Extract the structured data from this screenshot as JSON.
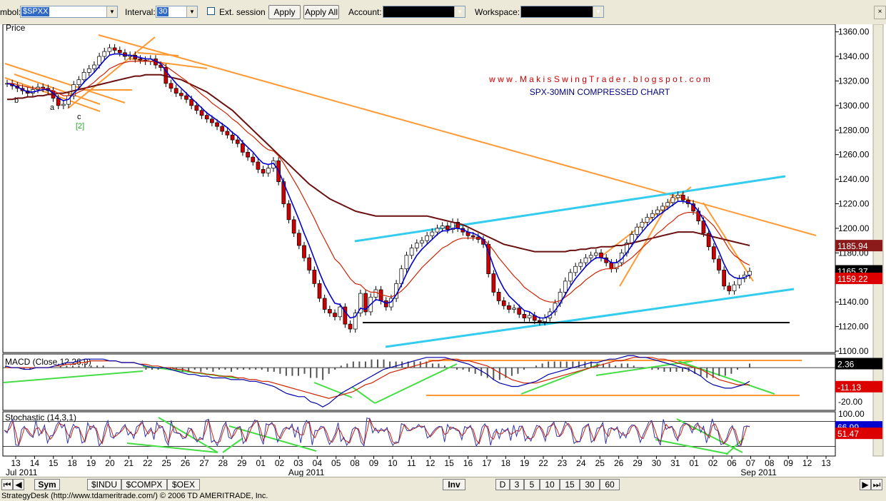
{
  "toolbar": {
    "symbol_label": "mbol:",
    "symbol_value": "$SPXX",
    "interval_label": "Interval:",
    "interval_value": "30",
    "ext_session_label": "Ext. session",
    "apply_label": "Apply",
    "apply_all_label": "Apply All",
    "account_label": "Account:",
    "workspace_label": "Workspace:"
  },
  "watermark": {
    "blog": "w w w . M a k i s S w i n g T r a d e r . b l o g s p o t . c o m",
    "subtitle": "SPX-30MIN COMPRESSED CHART"
  },
  "colors": {
    "up_candle": "#ffffff",
    "down_candle": "#cc0000",
    "ema_fast": "#0000cc",
    "ema_slow": "#cc2200",
    "sma_long": "#6b1010",
    "trendline": "#ff9933",
    "channel": "#33ccee",
    "divergence": "#44dd44",
    "support": "#000000"
  },
  "tabs": {
    "left": [
      "Sym",
      "$INDU",
      "$COMPX",
      "$OEX"
    ],
    "right": [
      "Inv",
      "D",
      "3",
      "5",
      "10",
      "15",
      "30",
      "60"
    ]
  },
  "status_text": "StrategyDesk (http://www.tdameritrade.com/) © 2006 TD AMERITRADE, Inc.",
  "chart_data": [
    {
      "panel": "price",
      "type": "candlestick",
      "title": "Price",
      "ylim": [
        1100,
        1365
      ],
      "yticks": [
        "1100.00",
        "1120.00",
        "1140.00",
        "1160.00",
        "1180.00",
        "1200.00",
        "1220.00",
        "1240.00",
        "1260.00",
        "1280.00",
        "1300.00",
        "1320.00",
        "1340.00",
        "1360.00"
      ],
      "price_labels": [
        {
          "text": "1185.94",
          "value": 1185.94,
          "color": "#8b1a1a"
        },
        {
          "text": "1165.37",
          "value": 1165.37,
          "color": "#000000"
        },
        {
          "text": "1159.22",
          "value": 1159.22,
          "color": "#dd0000"
        }
      ],
      "wave_labels": [
        "b",
        "a",
        "c",
        "[2]"
      ],
      "x_ticks": [
        "13",
        "14",
        "15",
        "18",
        "19",
        "20",
        "21",
        "22",
        "25",
        "26",
        "27",
        "28",
        "29",
        "01",
        "02",
        "03",
        "04",
        "05",
        "08",
        "09",
        "10",
        "11",
        "12",
        "15",
        "16",
        "17",
        "18",
        "19",
        "22",
        "23",
        "24",
        "25",
        "26",
        "29",
        "30",
        "31",
        "01",
        "02",
        "06",
        "07",
        "08",
        "09",
        "12",
        "13"
      ],
      "month_labels": [
        {
          "text": "Jul 2011",
          "at": "13"
        },
        {
          "text": "Aug 2011",
          "at": "02"
        },
        {
          "text": "Sep 2011",
          "at": "02"
        }
      ],
      "closes": [
        1318,
        1316,
        1314,
        1312,
        1310,
        1313,
        1315,
        1314,
        1312,
        1306,
        1300,
        1301,
        1308,
        1317,
        1321,
        1327,
        1330,
        1333,
        1340,
        1344,
        1347,
        1345,
        1343,
        1340,
        1341,
        1338,
        1337,
        1336,
        1338,
        1333,
        1331,
        1318,
        1314,
        1310,
        1308,
        1305,
        1300,
        1296,
        1292,
        1289,
        1286,
        1283,
        1279,
        1276,
        1272,
        1269,
        1262,
        1258,
        1254,
        1248,
        1245,
        1249,
        1255,
        1238,
        1220,
        1207,
        1196,
        1186,
        1176,
        1166,
        1155,
        1143,
        1134,
        1131,
        1128,
        1136,
        1122,
        1118,
        1131,
        1147,
        1132,
        1144,
        1150,
        1141,
        1136,
        1143,
        1155,
        1167,
        1178,
        1184,
        1188,
        1190,
        1194,
        1197,
        1200,
        1202,
        1199,
        1205,
        1200,
        1197,
        1194,
        1193,
        1191,
        1187,
        1163,
        1148,
        1141,
        1137,
        1134,
        1135,
        1130,
        1127,
        1129,
        1125,
        1124,
        1127,
        1132,
        1139,
        1148,
        1157,
        1164,
        1169,
        1172,
        1176,
        1178,
        1180,
        1176,
        1172,
        1167,
        1172,
        1180,
        1188,
        1195,
        1201,
        1205,
        1209,
        1212,
        1215,
        1218,
        1221,
        1225,
        1227,
        1223,
        1220,
        1214,
        1206,
        1196,
        1185,
        1175,
        1166,
        1153,
        1149,
        1154,
        1159,
        1162,
        1165
      ],
      "ema_fast_values": [
        1318,
        1317,
        1315,
        1313,
        1311,
        1311,
        1312,
        1313,
        1313,
        1310,
        1306,
        1304,
        1305,
        1310,
        1314,
        1319,
        1323,
        1327,
        1332,
        1337,
        1341,
        1342,
        1342,
        1341,
        1341,
        1340,
        1339,
        1338,
        1338,
        1336,
        1334,
        1328,
        1323,
        1318,
        1314,
        1310,
        1306,
        1302,
        1298,
        1294,
        1291,
        1288,
        1285,
        1282,
        1278,
        1275,
        1270,
        1266,
        1262,
        1257,
        1253,
        1252,
        1253,
        1247,
        1237,
        1227,
        1217,
        1207,
        1196,
        1186,
        1175,
        1164,
        1154,
        1146,
        1139,
        1138,
        1132,
        1127,
        1128,
        1135,
        1134,
        1138,
        1142,
        1141,
        1139,
        1140,
        1146,
        1154,
        1163,
        1171,
        1178,
        1183,
        1187,
        1191,
        1195,
        1198,
        1198,
        1200,
        1200,
        1199,
        1197,
        1196,
        1194,
        1191,
        1181,
        1169,
        1159,
        1151,
        1145,
        1141,
        1137,
        1133,
        1132,
        1129,
        1127,
        1127,
        1129,
        1133,
        1139,
        1146,
        1153,
        1159,
        1164,
        1169,
        1173,
        1176,
        1176,
        1175,
        1172,
        1172,
        1175,
        1180,
        1186,
        1192,
        1197,
        1202,
        1206,
        1210,
        1213,
        1216,
        1219,
        1222,
        1222,
        1221,
        1219,
        1214,
        1207,
        1199,
        1190,
        1181,
        1171,
        1163,
        1160,
        1159,
        1160,
        1162
      ],
      "ema_slow_values": [
        1318,
        1318,
        1317,
        1316,
        1315,
        1314,
        1314,
        1314,
        1313,
        1312,
        1310,
        1308,
        1308,
        1309,
        1311,
        1313,
        1316,
        1319,
        1323,
        1326,
        1330,
        1332,
        1334,
        1335,
        1336,
        1336,
        1336,
        1336,
        1336,
        1336,
        1335,
        1332,
        1329,
        1326,
        1323,
        1320,
        1316,
        1313,
        1309,
        1306,
        1302,
        1299,
        1296,
        1293,
        1289,
        1286,
        1282,
        1278,
        1275,
        1271,
        1267,
        1264,
        1263,
        1259,
        1253,
        1246,
        1239,
        1232,
        1224,
        1216,
        1208,
        1199,
        1191,
        1183,
        1175,
        1171,
        1165,
        1159,
        1155,
        1154,
        1150,
        1148,
        1148,
        1146,
        1145,
        1144,
        1146,
        1149,
        1153,
        1158,
        1163,
        1168,
        1172,
        1176,
        1180,
        1184,
        1186,
        1189,
        1191,
        1192,
        1192,
        1192,
        1192,
        1191,
        1187,
        1182,
        1176,
        1171,
        1166,
        1161,
        1157,
        1152,
        1149,
        1146,
        1143,
        1141,
        1140,
        1140,
        1141,
        1144,
        1147,
        1151,
        1154,
        1158,
        1161,
        1164,
        1166,
        1167,
        1167,
        1168,
        1170,
        1173,
        1176,
        1180,
        1184,
        1188,
        1192,
        1196,
        1199,
        1203,
        1206,
        1210,
        1212,
        1213,
        1213,
        1212,
        1210,
        1206,
        1202,
        1196,
        1190,
        1183,
        1178,
        1175,
        1172,
        1170
      ],
      "sma_long_values": [
        1305,
        1305,
        1306,
        1306,
        1307,
        1307,
        1308,
        1308,
        1309,
        1309,
        1310,
        1310,
        1311,
        1312,
        1313,
        1314,
        1315,
        1316,
        1317,
        1318,
        1319,
        1320,
        1321,
        1322,
        1323,
        1324,
        1324,
        1325,
        1325,
        1325,
        1325,
        1324,
        1323,
        1322,
        1321,
        1319,
        1317,
        1315,
        1313,
        1311,
        1308,
        1305,
        1302,
        1299,
        1296,
        1292,
        1288,
        1284,
        1280,
        1276,
        1272,
        1268,
        1264,
        1260,
        1256,
        1252,
        1248,
        1244,
        1240,
        1236,
        1233,
        1230,
        1227,
        1224,
        1222,
        1220,
        1218,
        1216,
        1214,
        1213,
        1212,
        1211,
        1210,
        1210,
        1210,
        1210,
        1210,
        1210,
        1210,
        1210,
        1210,
        1210,
        1210,
        1209,
        1208,
        1207,
        1206,
        1205,
        1204,
        1203,
        1201,
        1199,
        1197,
        1195,
        1193,
        1191,
        1189,
        1187,
        1186,
        1185,
        1184,
        1183,
        1182,
        1181,
        1181,
        1181,
        1181,
        1181,
        1181,
        1181,
        1182,
        1182,
        1183,
        1183,
        1184,
        1184,
        1185,
        1185,
        1185,
        1186,
        1186,
        1187,
        1188,
        1189,
        1190,
        1191,
        1192,
        1193,
        1194,
        1195,
        1196,
        1197,
        1197,
        1197,
        1197,
        1196,
        1195,
        1194,
        1193,
        1192,
        1191,
        1190,
        1189,
        1188,
        1187,
        1186
      ]
    },
    {
      "panel": "macd",
      "type": "line",
      "title": "MACD (Close,12,26,9)",
      "ylim": [
        -25,
        8
      ],
      "yticks": [
        "-20.00"
      ],
      "value_labels": [
        {
          "text": "2.36",
          "value": 2.36,
          "color": "#000000"
        },
        {
          "text": "-11.13",
          "value": -11.13,
          "color": "#dd0000"
        }
      ],
      "macd_values": [
        1,
        0,
        0,
        -1,
        -1,
        0,
        0,
        0,
        1,
        2,
        3,
        3,
        4,
        5,
        5,
        5,
        5,
        4,
        4,
        3,
        3,
        3,
        2,
        1,
        0,
        0,
        0,
        -1,
        -2,
        -3,
        -4,
        -4,
        -5,
        -5,
        -6,
        -6,
        -6,
        -7,
        -7,
        -7,
        -8,
        -8,
        -9,
        -10,
        -11,
        -13,
        -15,
        -16,
        -17,
        -17,
        -20,
        -21,
        -23,
        -21,
        -18,
        -15,
        -13,
        -11,
        -9,
        -7,
        -5,
        -3,
        -1,
        0,
        1,
        2,
        3,
        4,
        5,
        6,
        6,
        6,
        6,
        5,
        4,
        3,
        2,
        0,
        -2,
        -4,
        -7,
        -9,
        -10,
        -11,
        -11,
        -10,
        -9,
        -8,
        -6,
        -4,
        -3,
        -2,
        -1,
        0,
        1,
        2,
        3,
        3,
        4,
        5,
        5,
        6,
        7,
        7,
        6,
        6,
        5,
        4,
        3,
        2,
        1,
        0,
        -1,
        -3,
        -5,
        -8,
        -10,
        -11,
        -12,
        -12,
        -11,
        -10,
        -8
      ],
      "signal_values": [
        0,
        0,
        0,
        0,
        0,
        0,
        0,
        0,
        1,
        1,
        2,
        2,
        3,
        3,
        4,
        4,
        4,
        4,
        4,
        3,
        3,
        3,
        2,
        2,
        1,
        1,
        0,
        0,
        -1,
        -1,
        -2,
        -3,
        -3,
        -4,
        -4,
        -5,
        -5,
        -5,
        -6,
        -6,
        -7,
        -7,
        -8,
        -8,
        -9,
        -10,
        -11,
        -12,
        -13,
        -14,
        -15,
        -16,
        -17,
        -18,
        -17,
        -16,
        -15,
        -14,
        -12,
        -10,
        -9,
        -7,
        -5,
        -3,
        -2,
        -1,
        0,
        1,
        2,
        3,
        4,
        4,
        5,
        5,
        5,
        4,
        4,
        3,
        2,
        1,
        -1,
        -3,
        -5,
        -7,
        -8,
        -9,
        -9,
        -9,
        -8,
        -7,
        -6,
        -5,
        -4,
        -3,
        -2,
        -1,
        0,
        1,
        2,
        3,
        4,
        4,
        5,
        6,
        6,
        6,
        6,
        5,
        5,
        4,
        3,
        2,
        1,
        0,
        -1,
        -3,
        -5,
        -7,
        -8,
        -9,
        -10,
        -10,
        -10
      ]
    },
    {
      "panel": "stochastic",
      "type": "line",
      "title": "Stochastic (14,3,1)",
      "ylim": [
        0,
        100
      ],
      "yticks": [
        "100.00"
      ],
      "value_labels": [
        {
          "text": "66.99",
          "value": 66.99,
          "color": "#0000cc"
        },
        {
          "text": "51.47",
          "value": 51.47,
          "color": "#dd0000"
        }
      ]
    }
  ]
}
